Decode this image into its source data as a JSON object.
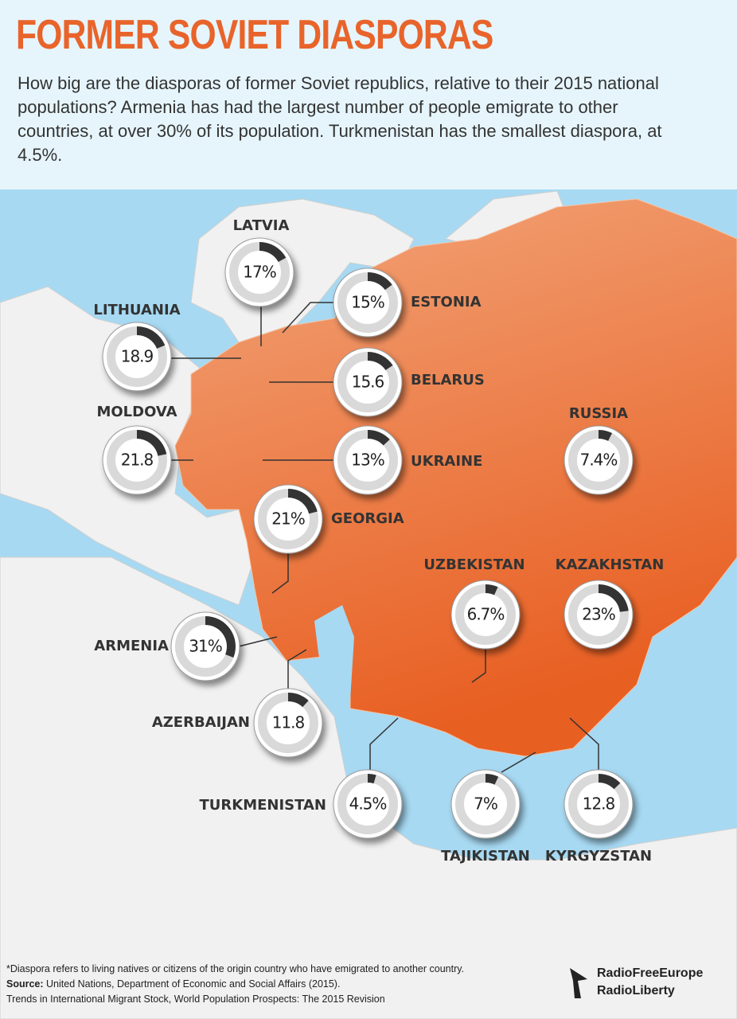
{
  "header": {
    "title": "FORMER SOVIET DIASPORAS",
    "subtitle": "How big are the diasporas of former Soviet republics, relative to their 2015 national populations? Armenia has had the largest number of people emigrate to other countries, at over 30% of its population. Turkmenistan has the smallest diaspora, at 4.5%."
  },
  "countries": [
    {
      "name": "LATVIA",
      "value": 17,
      "value_label": "17%"
    },
    {
      "name": "ESTONIA",
      "value": 15,
      "value_label": "15%"
    },
    {
      "name": "LITHUANIA",
      "value": 18.9,
      "value_label": "18.9"
    },
    {
      "name": "BELARUS",
      "value": 15.6,
      "value_label": "15.6"
    },
    {
      "name": "MOLDOVA",
      "value": 21.8,
      "value_label": "21.8"
    },
    {
      "name": "UKRAINE",
      "value": 13,
      "value_label": "13%"
    },
    {
      "name": "RUSSIA",
      "value": 7.4,
      "value_label": "7.4%"
    },
    {
      "name": "GEORGIA",
      "value": 21,
      "value_label": "21%"
    },
    {
      "name": "UZBEKISTAN",
      "value": 6.7,
      "value_label": "6.7%"
    },
    {
      "name": "KAZAKHSTAN",
      "value": 23,
      "value_label": "23%"
    },
    {
      "name": "ARMENIA",
      "value": 31,
      "value_label": "31%"
    },
    {
      "name": "AZERBAIJAN",
      "value": 11.8,
      "value_label": "11.8"
    },
    {
      "name": "TURKMENISTAN",
      "value": 4.5,
      "value_label": "4.5%"
    },
    {
      "name": "TAJIKISTAN",
      "value": 7,
      "value_label": "7%"
    },
    {
      "name": "KYRGYZSTAN",
      "value": 12.8,
      "value_label": "12.8"
    }
  ],
  "footer": {
    "note": "*Diaspora refers to living natives or citizens of the origin country who have emigrated  to another country.",
    "source_label": "Source:",
    "source": "United Nations, Department of Economic and Social Affairs (2015).",
    "trends": "Trends in International Migrant Stock, World Population Prospects: The 2015 Revision"
  },
  "logo": {
    "line1": "RadioFreeEurope",
    "line2": "RadioLiberty"
  }
}
